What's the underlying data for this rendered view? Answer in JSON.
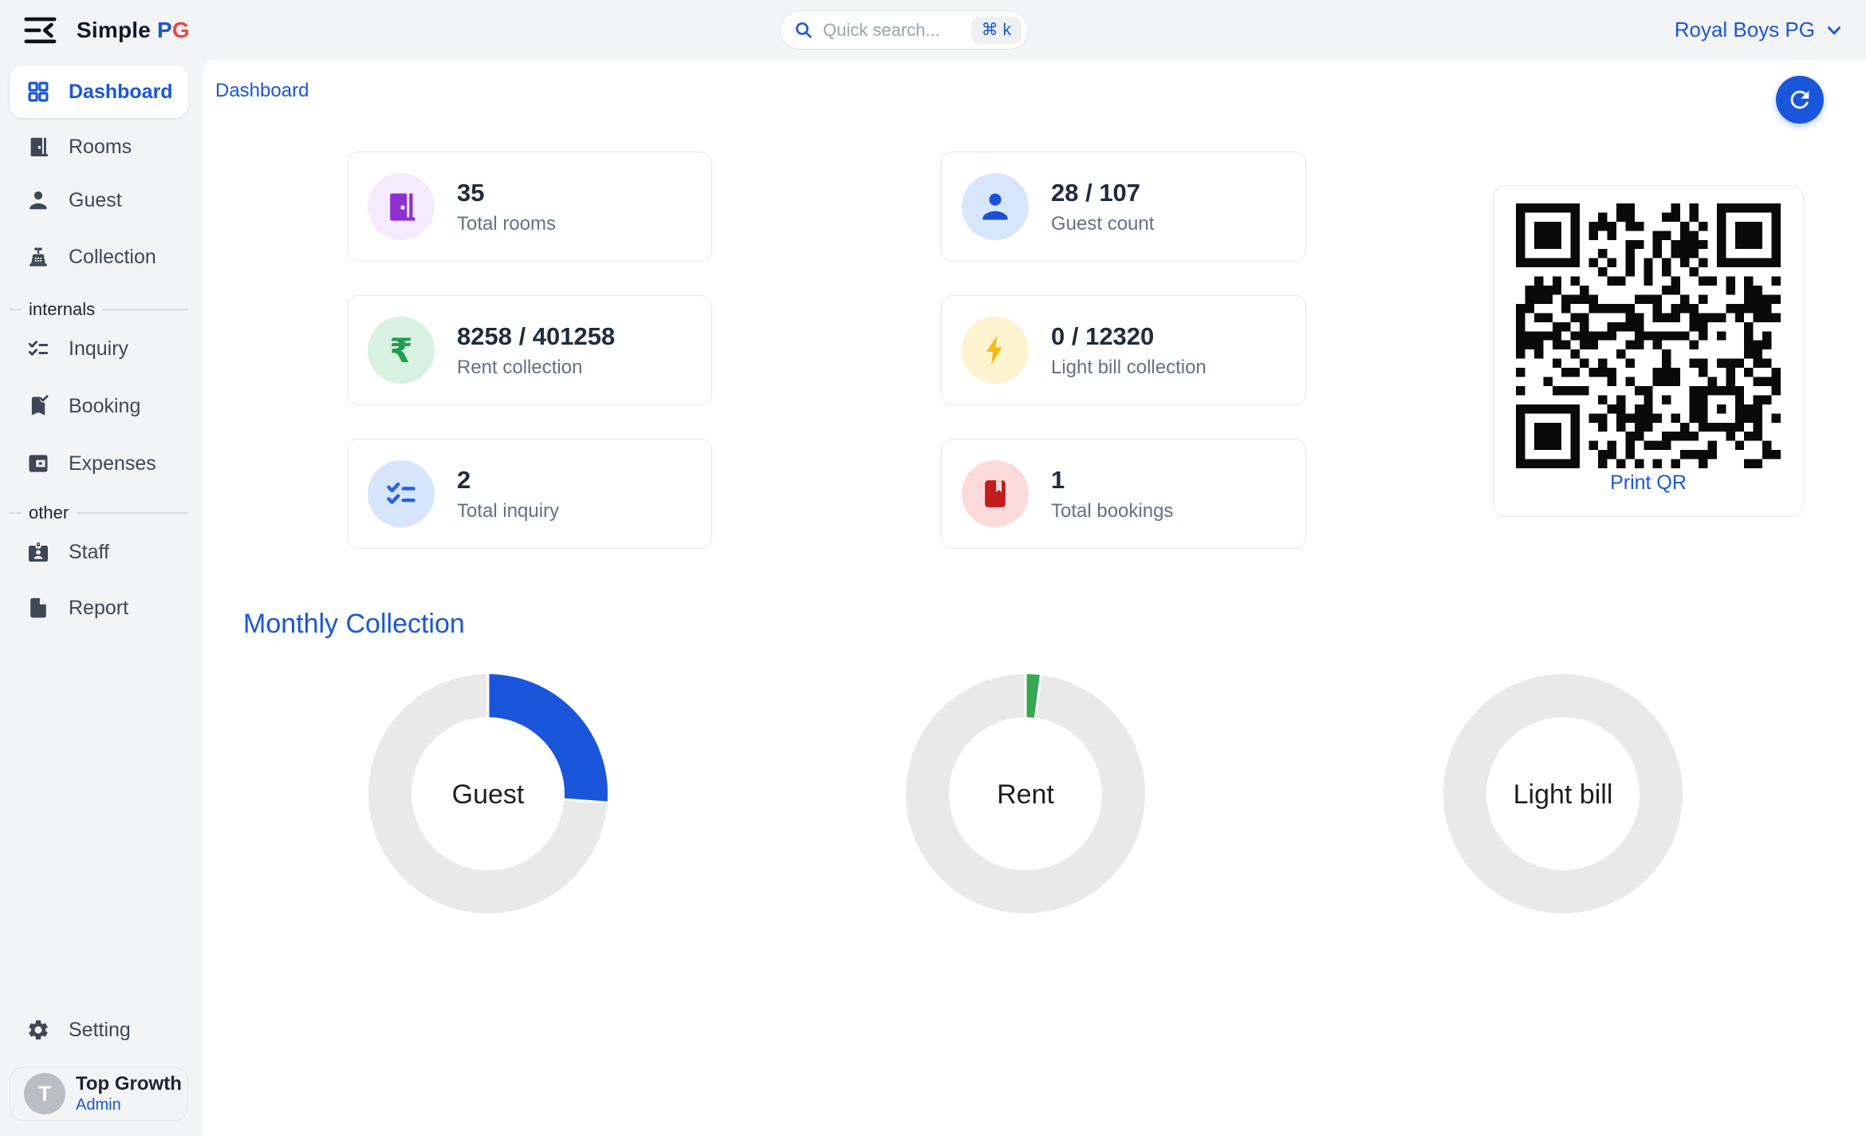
{
  "topbar": {
    "logo_text_1": "Simple",
    "logo_text_2": "P",
    "logo_text_3": "G",
    "search_placeholder": "Quick search...",
    "search_shortcut": "⌘ k",
    "account_name": "Royal Boys PG"
  },
  "sidebar": {
    "items_main": [
      {
        "label": "Dashboard",
        "icon": "dashboard-grid-icon",
        "active": true
      },
      {
        "label": "Rooms",
        "icon": "door-icon"
      },
      {
        "label": "Guest",
        "icon": "person-icon"
      },
      {
        "label": "Collection",
        "icon": "cash-register-icon"
      }
    ],
    "section_internals": "internals",
    "items_internals": [
      {
        "label": "Inquiry",
        "icon": "checklist-icon"
      },
      {
        "label": "Booking",
        "icon": "bookmark-check-icon"
      },
      {
        "label": "Expenses",
        "icon": "wallet-icon"
      }
    ],
    "section_other": "other",
    "items_other": [
      {
        "label": "Staff",
        "icon": "badge-icon"
      },
      {
        "label": "Report",
        "icon": "file-icon"
      }
    ],
    "setting_label": "Setting",
    "user": {
      "name": "Top Growth",
      "role": "Admin",
      "initial": "T"
    }
  },
  "main": {
    "breadcrumb": "Dashboard",
    "stats": [
      {
        "value": "35",
        "label": "Total rooms",
        "icon": "door-icon",
        "icon_color": "#8f2fd1",
        "icon_bg": "#f5ebfd"
      },
      {
        "value": "28 / 107",
        "label": "Guest count",
        "icon": "person-icon",
        "icon_color": "#1d4fd7",
        "icon_bg": "#d8e6fb"
      },
      {
        "value": "8258 / 401258",
        "label": "Rent collection",
        "icon": "rupee-icon",
        "icon_color": "#1f9d55",
        "icon_bg": "#d8f1e1",
        "glyph": "₹"
      },
      {
        "value": "0 / 12320",
        "label": "Light bill collection",
        "icon": "bolt-icon",
        "icon_color": "#f5b910",
        "icon_bg": "#fdf3cf"
      },
      {
        "value": "2",
        "label": "Total inquiry",
        "icon": "checklist-icon",
        "icon_color": "#2563eb",
        "icon_bg": "#d7e5fb"
      },
      {
        "value": "1",
        "label": "Total bookings",
        "icon": "book-icon",
        "icon_color": "#c21c1c",
        "icon_bg": "#fbdada"
      }
    ],
    "qr_print_label": "Print QR",
    "section_title": "Monthly Collection"
  },
  "colors": {
    "accent_blue": "#1a56db",
    "logo_red": "#ef4444",
    "app_background": "#f3f4f6",
    "panel_background": "#ffffff",
    "card_border": "#e5e7eb",
    "value_text": "#222b3a",
    "label_text": "#667085",
    "donut_track": "#e9e9e9"
  },
  "chart_data": [
    {
      "type": "pie",
      "variant": "donut",
      "center_label": "Guest",
      "series": [
        {
          "name": "collected",
          "value": 28
        },
        {
          "name": "remaining",
          "value": 79
        }
      ],
      "total": 107,
      "fill_pct": 26.2,
      "fill_color": "#1a56db",
      "track_color": "#e9e9e9",
      "legend": "none"
    },
    {
      "type": "pie",
      "variant": "donut",
      "center_label": "Rent",
      "series": [
        {
          "name": "collected",
          "value": 8258
        },
        {
          "name": "remaining",
          "value": 393000
        }
      ],
      "total": 401258,
      "fill_pct": 2.1,
      "fill_color": "#34a853",
      "track_color": "#e9e9e9",
      "legend": "none"
    },
    {
      "type": "pie",
      "variant": "donut",
      "center_label": "Light bill",
      "series": [
        {
          "name": "collected",
          "value": 0
        },
        {
          "name": "remaining",
          "value": 12320
        }
      ],
      "total": 12320,
      "fill_pct": 0,
      "fill_color": "#34a853",
      "track_color": "#e9e9e9",
      "legend": "none"
    }
  ]
}
